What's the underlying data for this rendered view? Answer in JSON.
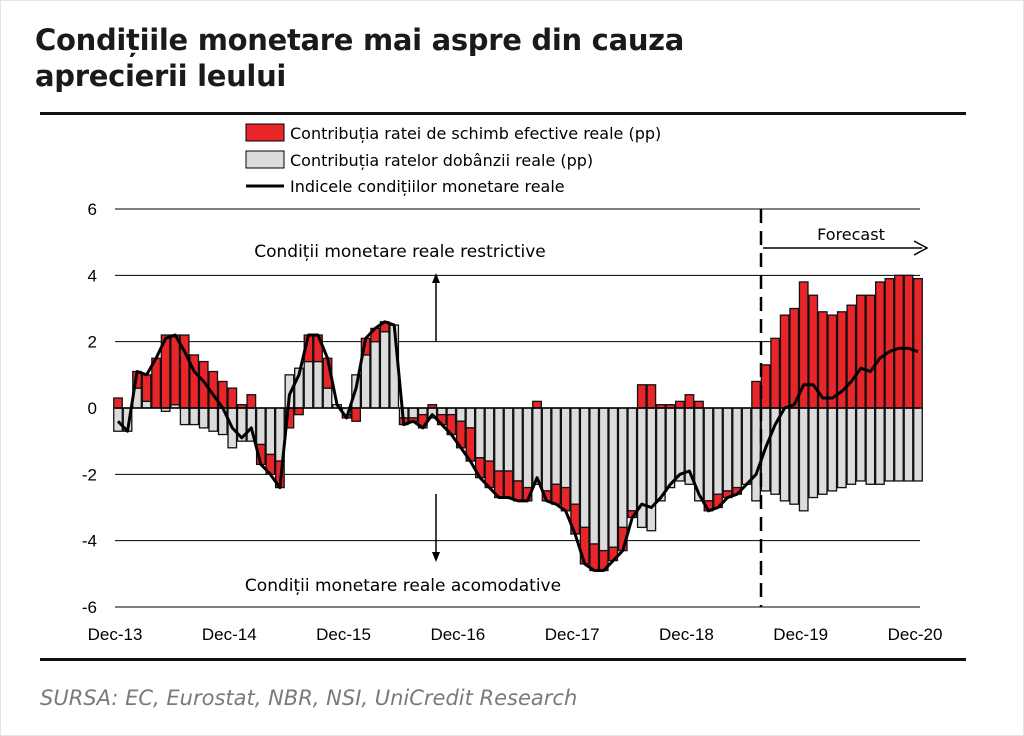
{
  "title_line1": "Condițiile monetare mai aspre din cauza",
  "title_line2": "aprecierii leului",
  "source": "SURSA: EC, Eurostat, NBR, NSI, UniCredit Research",
  "colors": {
    "rer": "#e8262a",
    "rate": "#dcdcdc",
    "index": "#000000"
  },
  "chart_data": {
    "type": "bar",
    "title": "Condițiile monetare mai aspre din cauza aprecierii leului",
    "xlabel": "",
    "ylabel": "",
    "ylim": [
      -6,
      6
    ],
    "yticks": [
      "6",
      "4",
      "2",
      "0",
      "-2",
      "-4",
      "-6"
    ],
    "xtick_labels": [
      "Dec-13",
      "Dec-14",
      "Dec-15",
      "Dec-16",
      "Dec-17",
      "Dec-18",
      "Dec-19",
      "Dec-20"
    ],
    "x_start": "Dec-13",
    "frequency": "monthly",
    "grid": true,
    "legend": {
      "position": "top",
      "items": [
        "Contribuția ratei de schimb efective reale (pp)",
        "Contribuția ratelor dobânzii reale (pp)",
        "Indicele condițiilor monetare reale"
      ]
    },
    "annotations": {
      "restrictive": "Condiții monetare reale restrictive",
      "accommodative": "Condiții monetare reale acomodative",
      "forecast": "Forecast",
      "forecast_start": "Jul-19"
    },
    "series": [
      {
        "name": "Contribuția ratei de schimb efective reale (pp)",
        "kind": "stacked-bar",
        "values": [
          0.3,
          0.0,
          0.5,
          0.8,
          1.5,
          2.2,
          2.1,
          2.2,
          1.6,
          1.4,
          1.1,
          0.8,
          0.6,
          0.1,
          0.4,
          -0.6,
          -0.6,
          -0.8,
          -0.6,
          -0.2,
          0.8,
          0.8,
          0.9,
          0.0,
          -0.1,
          -0.4,
          0.5,
          0.4,
          0.3,
          0.0,
          -0.2,
          -0.1,
          -0.4,
          0.1,
          -0.3,
          -0.6,
          -0.8,
          -1.0,
          -0.6,
          -0.8,
          -0.8,
          -0.8,
          -0.6,
          -0.4,
          0.2,
          -0.3,
          -0.6,
          -0.7,
          -0.9,
          -1.1,
          -0.8,
          -0.6,
          -0.4,
          -0.7,
          -0.2,
          0.7,
          0.7,
          0.1,
          0.1,
          0.2,
          0.4,
          0.2,
          -0.3,
          -0.4,
          -0.2,
          -0.2,
          0.0,
          0.8,
          1.3,
          2.1,
          2.8,
          3.0,
          3.8,
          3.4,
          2.9,
          2.8,
          2.9,
          3.1,
          3.4,
          3.4,
          3.8,
          3.9,
          4.0,
          4.0,
          3.9
        ]
      },
      {
        "name": "Contribuția ratelor dobânzii reale (pp)",
        "kind": "stacked-bar",
        "values": [
          -0.7,
          -0.7,
          0.6,
          0.2,
          0.0,
          -0.1,
          0.1,
          -0.5,
          -0.5,
          -0.6,
          -0.7,
          -0.8,
          -1.2,
          -1.0,
          -1.0,
          -1.1,
          -1.4,
          -1.6,
          1.0,
          1.2,
          1.4,
          1.4,
          0.6,
          0.1,
          -0.2,
          1.0,
          1.6,
          2.0,
          2.3,
          2.5,
          -0.3,
          -0.3,
          -0.2,
          -0.3,
          -0.2,
          -0.2,
          -0.4,
          -0.6,
          -1.5,
          -1.6,
          -1.9,
          -1.9,
          -2.2,
          -2.4,
          -2.3,
          -2.5,
          -2.3,
          -2.4,
          -2.9,
          -3.6,
          -4.1,
          -4.3,
          -4.2,
          -3.6,
          -3.1,
          -3.6,
          -3.7,
          -2.8,
          -2.4,
          -2.2,
          -2.3,
          -2.8,
          -2.8,
          -2.6,
          -2.5,
          -2.4,
          -2.3,
          -2.8,
          -2.5,
          -2.6,
          -2.8,
          -2.9,
          -3.1,
          -2.7,
          -2.6,
          -2.5,
          -2.4,
          -2.3,
          -2.2,
          -2.3,
          -2.3,
          -2.2,
          -2.2,
          -2.2,
          -2.2
        ]
      },
      {
        "name": "Indicele condițiilor monetare reale",
        "kind": "line",
        "values": [
          -0.4,
          -0.7,
          1.1,
          1.0,
          1.5,
          2.1,
          2.2,
          1.7,
          1.1,
          0.8,
          0.4,
          0.0,
          -0.6,
          -0.9,
          -0.6,
          -1.7,
          -2.0,
          -2.4,
          0.4,
          1.0,
          2.2,
          2.2,
          1.5,
          0.1,
          -0.3,
          0.6,
          2.1,
          2.4,
          2.6,
          2.5,
          -0.5,
          -0.4,
          -0.6,
          -0.2,
          -0.5,
          -0.8,
          -1.2,
          -1.6,
          -2.1,
          -2.4,
          -2.7,
          -2.7,
          -2.8,
          -2.8,
          -2.1,
          -2.8,
          -2.9,
          -3.1,
          -3.8,
          -4.7,
          -4.9,
          -4.9,
          -4.6,
          -4.3,
          -3.3,
          -2.9,
          -3.0,
          -2.7,
          -2.3,
          -2.0,
          -1.9,
          -2.6,
          -3.1,
          -3.0,
          -2.7,
          -2.6,
          -2.3,
          -2.0,
          -1.2,
          -0.5,
          0.0,
          0.1,
          0.7,
          0.7,
          0.3,
          0.3,
          0.5,
          0.8,
          1.2,
          1.1,
          1.5,
          1.7,
          1.8,
          1.8,
          1.7
        ]
      }
    ]
  }
}
